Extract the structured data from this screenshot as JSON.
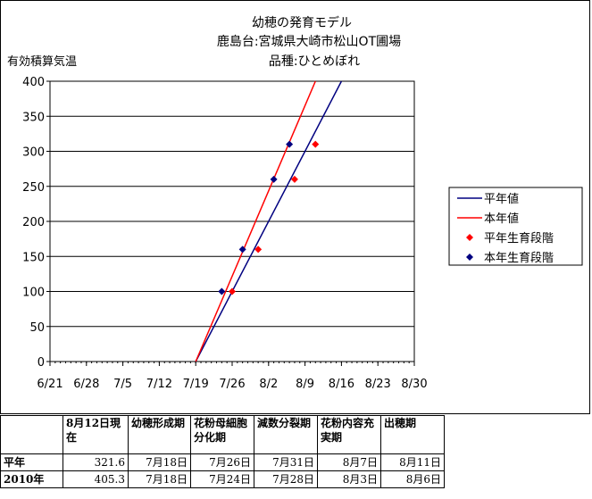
{
  "chart_data": {
    "type": "line",
    "title_lines": [
      "幼穂の発育モデル",
      "鹿島台:宮城県大崎市松山OT圃場",
      "品種:ひとめぼれ"
    ],
    "ylabel": "有効積算気温",
    "ylim": [
      0,
      400
    ],
    "yticks": [
      0,
      50,
      100,
      150,
      200,
      250,
      300,
      350,
      400
    ],
    "x_tick_labels": [
      "6/21",
      "6/28",
      "7/5",
      "7/12",
      "7/19",
      "7/26",
      "8/2",
      "8/9",
      "8/16",
      "8/23",
      "8/30"
    ],
    "x_ticks": [
      "2010-06-21",
      "2010-06-28",
      "2010-07-05",
      "2010-07-12",
      "2010-07-19",
      "2010-07-26",
      "2010-08-02",
      "2010-08-09",
      "2010-08-16",
      "2010-08-23",
      "2010-08-30"
    ],
    "xlim": [
      "2010-06-21",
      "2010-08-30"
    ],
    "grid": "horizontal",
    "legend_position": "right",
    "series": [
      {
        "name": "平年値",
        "kind": "line",
        "color": "#000080",
        "x": [
          "2010-07-19",
          "2010-08-16"
        ],
        "y": [
          0,
          400
        ]
      },
      {
        "name": "本年値",
        "kind": "line",
        "color": "#ff0000",
        "x": [
          "2010-07-19",
          "2010-08-11"
        ],
        "y": [
          0,
          400
        ]
      },
      {
        "name": "平年生育段階",
        "kind": "points",
        "color": "#ff0000",
        "x": [
          "2010-07-26",
          "2010-07-31",
          "2010-08-07",
          "2010-08-11"
        ],
        "y": [
          100,
          160,
          260,
          310
        ]
      },
      {
        "name": "本年生育段階",
        "kind": "points",
        "color": "#000080",
        "x": [
          "2010-07-24",
          "2010-07-28",
          "2010-08-03",
          "2010-08-06"
        ],
        "y": [
          100,
          160,
          260,
          310
        ]
      }
    ]
  },
  "table": {
    "header": [
      "",
      "8月12日現在",
      "幼穂形成期",
      "花粉母細胞分化期",
      "減数分裂期",
      "花粉内容充実期",
      "出穂期"
    ],
    "rows": [
      [
        "平年",
        "321.6",
        "7月18日",
        "7月26日",
        "7月31日",
        "8月7日",
        "8月11日"
      ],
      [
        "2010年",
        "405.3",
        "7月18日",
        "7月24日",
        "7月28日",
        "8月3日",
        "8月6日"
      ]
    ]
  }
}
